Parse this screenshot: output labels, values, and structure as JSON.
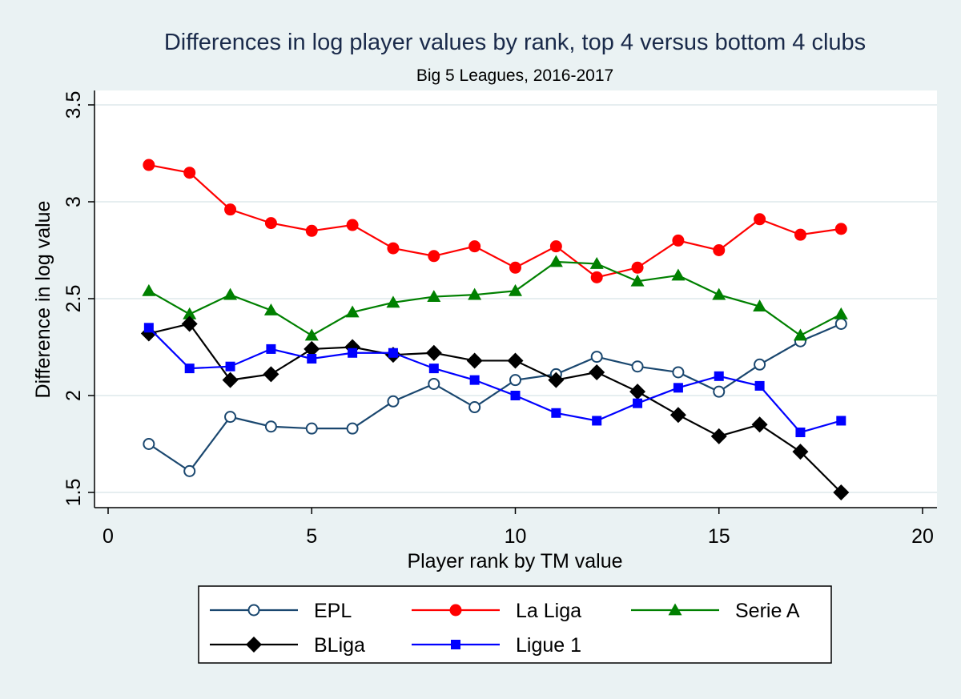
{
  "chart_data": {
    "type": "line",
    "title": "Differences in log player values by rank, top 4 versus bottom 4 clubs",
    "subtitle": "Big 5 Leagues, 2016-2017",
    "xlabel": "Player rank by TM value",
    "ylabel": "Difference in log value",
    "xlim": [
      0,
      20
    ],
    "ylim": [
      1.5,
      3.5
    ],
    "xticks": [
      0,
      5,
      10,
      15,
      20
    ],
    "yticks": [
      1.5,
      2,
      2.5,
      3,
      3.5
    ],
    "xtick_labels": [
      "0",
      "5",
      "10",
      "15",
      "20"
    ],
    "ytick_labels": [
      "1.5",
      "2",
      "2.5",
      "3",
      "3.5"
    ],
    "grid": "horizontal",
    "legend_position": "bottom",
    "x": [
      1,
      2,
      3,
      4,
      5,
      6,
      7,
      8,
      9,
      10,
      11,
      12,
      13,
      14,
      15,
      16,
      17,
      18
    ],
    "series": [
      {
        "name": "EPL",
        "color": "#1a476f",
        "marker": "hollow-circle",
        "values": [
          1.75,
          1.61,
          1.89,
          1.84,
          1.83,
          1.83,
          1.97,
          2.06,
          1.94,
          2.08,
          2.11,
          2.2,
          2.15,
          2.12,
          2.02,
          2.16,
          2.28,
          2.37
        ]
      },
      {
        "name": "La Liga",
        "color": "#ff0000",
        "marker": "circle",
        "values": [
          3.19,
          3.15,
          2.96,
          2.89,
          2.85,
          2.88,
          2.76,
          2.72,
          2.77,
          2.66,
          2.77,
          2.61,
          2.66,
          2.8,
          2.75,
          2.91,
          2.83,
          2.86
        ]
      },
      {
        "name": "Serie A",
        "color": "#008000",
        "marker": "triangle",
        "values": [
          2.54,
          2.42,
          2.52,
          2.44,
          2.31,
          2.43,
          2.48,
          2.51,
          2.52,
          2.54,
          2.69,
          2.68,
          2.59,
          2.62,
          2.52,
          2.46,
          2.31,
          2.42
        ]
      },
      {
        "name": "BLiga",
        "color": "#000000",
        "marker": "diamond",
        "values": [
          2.32,
          2.37,
          2.08,
          2.11,
          2.24,
          2.25,
          2.21,
          2.22,
          2.18,
          2.18,
          2.08,
          2.12,
          2.02,
          1.9,
          1.79,
          1.85,
          1.71,
          1.5
        ]
      },
      {
        "name": "Ligue 1",
        "color": "#0000ff",
        "marker": "square",
        "values": [
          2.35,
          2.14,
          2.15,
          2.24,
          2.19,
          2.22,
          2.22,
          2.14,
          2.08,
          2.0,
          1.91,
          1.87,
          1.96,
          2.04,
          2.1,
          2.05,
          1.81,
          1.87
        ]
      }
    ]
  }
}
